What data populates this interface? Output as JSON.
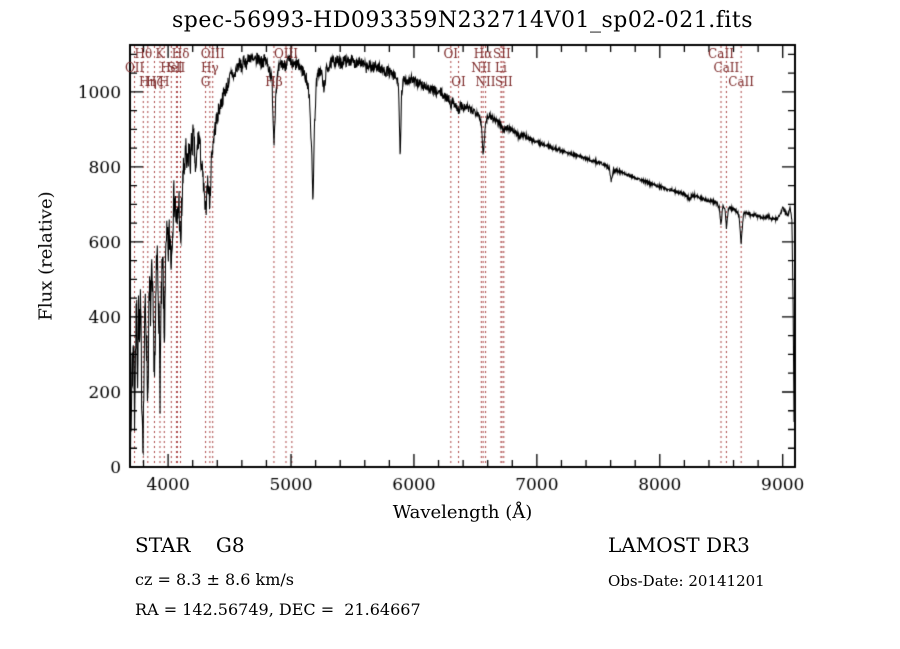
{
  "title": "spec-56993-HD093359N232714V01_sp02-021.fits",
  "footer": {
    "class_label": "STAR    G8",
    "survey": "LAMOST DR3",
    "cz": "cz = 8.3 ± 8.6 km/s",
    "obs_date": "Obs-Date: 20141201",
    "coords": "RA = 142.56749, DEC =  21.64667"
  },
  "chart_data": {
    "type": "line",
    "title": "spec-56993-HD093359N232714V01_sp02-021.fits",
    "xlabel": "Wavelength (Å)",
    "ylabel": "Flux (relative)",
    "xlim": [
      3690,
      9100
    ],
    "ylim": [
      0,
      1125
    ],
    "x_major_ticks": [
      4000,
      5000,
      6000,
      7000,
      8000,
      9000
    ],
    "x_minor_step": 200,
    "y_major_ticks": [
      0,
      200,
      400,
      600,
      800,
      1000
    ],
    "y_minor_step": 50,
    "grid": false,
    "legend": "none",
    "line_color": "#000000",
    "marker_line_color": "#aa4444",
    "marker_label_color": "#7d2b2b",
    "spectral_lines": [
      {
        "label": "OII",
        "wavelength": 3727,
        "row": 1
      },
      {
        "label": "Hθ",
        "wavelength": 3798,
        "row": 0
      },
      {
        "label": "Hη",
        "wavelength": 3835,
        "row": 2
      },
      {
        "label": "Hζ",
        "wavelength": 3889,
        "row": 2
      },
      {
        "label": "K",
        "wavelength": 3934,
        "row": 0
      },
      {
        "label": "H",
        "wavelength": 3969,
        "row": 2
      },
      {
        "label": "HeI",
        "wavelength": 4026,
        "row": 1
      },
      {
        "label": "SII",
        "wavelength": 4068,
        "row": 1
      },
      {
        "label": "",
        "wavelength": 4076,
        "row": 1
      },
      {
        "label": "Hδ",
        "wavelength": 4101,
        "row": 0
      },
      {
        "label": "G",
        "wavelength": 4305,
        "row": 2
      },
      {
        "label": "Hγ",
        "wavelength": 4340,
        "row": 1
      },
      {
        "label": "OIII",
        "wavelength": 4363,
        "row": 0
      },
      {
        "label": "Hβ",
        "wavelength": 4861,
        "row": 2
      },
      {
        "label": "OIII",
        "wavelength": 4959,
        "row": 0
      },
      {
        "label": "",
        "wavelength": 5007,
        "row": 0
      },
      {
        "label": "OI",
        "wavelength": 6300,
        "row": 0
      },
      {
        "label": "OI",
        "wavelength": 6363,
        "row": 2
      },
      {
        "label": "NII",
        "wavelength": 6548,
        "row": 1
      },
      {
        "label": "Hα",
        "wavelength": 6563,
        "row": 0
      },
      {
        "label": "NII",
        "wavelength": 6583,
        "row": 2
      },
      {
        "label": "Li",
        "wavelength": 6708,
        "row": 1
      },
      {
        "label": "SII",
        "wavelength": 6716,
        "row": 0
      },
      {
        "label": "SII",
        "wavelength": 6731,
        "row": 2
      },
      {
        "label": "CaII",
        "wavelength": 8498,
        "row": 0
      },
      {
        "label": "CaII",
        "wavelength": 8542,
        "row": 1
      },
      {
        "label": "CaII",
        "wavelength": 8662,
        "row": 2
      }
    ],
    "spectrum": {
      "anchors": [
        [
          3692,
          140
        ],
        [
          3700,
          60
        ],
        [
          3706,
          330
        ],
        [
          3712,
          210
        ],
        [
          3718,
          390
        ],
        [
          3727,
          140
        ],
        [
          3736,
          340
        ],
        [
          3744,
          400
        ],
        [
          3752,
          260
        ],
        [
          3760,
          430
        ],
        [
          3768,
          310
        ],
        [
          3776,
          430
        ],
        [
          3784,
          230
        ],
        [
          3792,
          120
        ],
        [
          3798,
          90
        ],
        [
          3806,
          300
        ],
        [
          3814,
          440
        ],
        [
          3822,
          370
        ],
        [
          3830,
          250
        ],
        [
          3835,
          170
        ],
        [
          3842,
          380
        ],
        [
          3850,
          470
        ],
        [
          3858,
          420
        ],
        [
          3866,
          500
        ],
        [
          3874,
          440
        ],
        [
          3882,
          350
        ],
        [
          3889,
          260
        ],
        [
          3896,
          300
        ],
        [
          3904,
          520
        ],
        [
          3912,
          560
        ],
        [
          3920,
          480
        ],
        [
          3927,
          380
        ],
        [
          3934,
          190
        ],
        [
          3942,
          400
        ],
        [
          3950,
          500
        ],
        [
          3958,
          540
        ],
        [
          3964,
          430
        ],
        [
          3969,
          310
        ],
        [
          3976,
          500
        ],
        [
          3984,
          570
        ],
        [
          3992,
          610
        ],
        [
          4000,
          570
        ],
        [
          4010,
          620
        ],
        [
          4020,
          600
        ],
        [
          4026,
          540
        ],
        [
          4034,
          640
        ],
        [
          4044,
          700
        ],
        [
          4054,
          730
        ],
        [
          4062,
          680
        ],
        [
          4072,
          630
        ],
        [
          4088,
          720
        ],
        [
          4095,
          650
        ],
        [
          4101,
          560
        ],
        [
          4110,
          680
        ],
        [
          4120,
          760
        ],
        [
          4132,
          800
        ],
        [
          4144,
          830
        ],
        [
          4156,
          790
        ],
        [
          4168,
          850
        ],
        [
          4180,
          810
        ],
        [
          4192,
          860
        ],
        [
          4204,
          880
        ],
        [
          4215,
          840
        ],
        [
          4226,
          770
        ],
        [
          4238,
          860
        ],
        [
          4250,
          880
        ],
        [
          4262,
          840
        ],
        [
          4274,
          800
        ],
        [
          4288,
          750
        ],
        [
          4305,
          670
        ],
        [
          4318,
          760
        ],
        [
          4330,
          740
        ],
        [
          4340,
          700
        ],
        [
          4352,
          820
        ],
        [
          4364,
          860
        ],
        [
          4376,
          890
        ],
        [
          4390,
          920
        ],
        [
          4405,
          940
        ],
        [
          4420,
          960
        ],
        [
          4440,
          980
        ],
        [
          4460,
          1000
        ],
        [
          4480,
          1015
        ],
        [
          4500,
          1035
        ],
        [
          4520,
          1050
        ],
        [
          4540,
          1040
        ],
        [
          4560,
          1065
        ],
        [
          4580,
          1075
        ],
        [
          4600,
          1065
        ],
        [
          4620,
          1085
        ],
        [
          4640,
          1075
        ],
        [
          4660,
          1095
        ],
        [
          4680,
          1085
        ],
        [
          4700,
          1080
        ],
        [
          4730,
          1090
        ],
        [
          4760,
          1080
        ],
        [
          4790,
          1085
        ],
        [
          4820,
          1065
        ],
        [
          4845,
          1030
        ],
        [
          4861,
          860
        ],
        [
          4878,
          1010
        ],
        [
          4900,
          1060
        ],
        [
          4925,
          1075
        ],
        [
          4950,
          1070
        ],
        [
          4975,
          1085
        ],
        [
          5000,
          1075
        ],
        [
          5025,
          1070
        ],
        [
          5050,
          1075
        ],
        [
          5075,
          1065
        ],
        [
          5100,
          1055
        ],
        [
          5125,
          1035
        ],
        [
          5150,
          990
        ],
        [
          5168,
          840
        ],
        [
          5178,
          700
        ],
        [
          5190,
          900
        ],
        [
          5205,
          1020
        ],
        [
          5225,
          1055
        ],
        [
          5250,
          1050
        ],
        [
          5268,
          1000
        ],
        [
          5285,
          1055
        ],
        [
          5310,
          1070
        ],
        [
          5340,
          1080
        ],
        [
          5370,
          1085
        ],
        [
          5400,
          1075
        ],
        [
          5430,
          1085
        ],
        [
          5460,
          1080
        ],
        [
          5490,
          1085
        ],
        [
          5520,
          1075
        ],
        [
          5550,
          1085
        ],
        [
          5580,
          1075
        ],
        [
          5610,
          1065
        ],
        [
          5640,
          1070
        ],
        [
          5670,
          1065
        ],
        [
          5700,
          1070
        ],
        [
          5730,
          1060
        ],
        [
          5760,
          1055
        ],
        [
          5790,
          1055
        ],
        [
          5820,
          1045
        ],
        [
          5850,
          1040
        ],
        [
          5875,
          1020
        ],
        [
          5888,
          810
        ],
        [
          5900,
          1000
        ],
        [
          5920,
          1035
        ],
        [
          5950,
          1030
        ],
        [
          5980,
          1035
        ],
        [
          6010,
          1025
        ],
        [
          6040,
          1025
        ],
        [
          6070,
          1015
        ],
        [
          6100,
          1015
        ],
        [
          6130,
          1005
        ],
        [
          6160,
          1005
        ],
        [
          6190,
          995
        ],
        [
          6220,
          1000
        ],
        [
          6250,
          985
        ],
        [
          6280,
          985
        ],
        [
          6300,
          965
        ],
        [
          6320,
          975
        ],
        [
          6340,
          965
        ],
        [
          6362,
          945
        ],
        [
          6380,
          965
        ],
        [
          6400,
          955
        ],
        [
          6430,
          960
        ],
        [
          6460,
          950
        ],
        [
          6490,
          950
        ],
        [
          6520,
          945
        ],
        [
          6545,
          925
        ],
        [
          6563,
          830
        ],
        [
          6585,
          925
        ],
        [
          6610,
          940
        ],
        [
          6640,
          930
        ],
        [
          6670,
          925
        ],
        [
          6700,
          915
        ],
        [
          6717,
          905
        ],
        [
          6731,
          900
        ],
        [
          6760,
          905
        ],
        [
          6800,
          900
        ],
        [
          6860,
          880
        ],
        [
          6880,
          885
        ],
        [
          6920,
          880
        ],
        [
          6960,
          872
        ],
        [
          7000,
          868
        ],
        [
          7050,
          860
        ],
        [
          7100,
          855
        ],
        [
          7150,
          848
        ],
        [
          7200,
          843
        ],
        [
          7250,
          838
        ],
        [
          7300,
          833
        ],
        [
          7350,
          828
        ],
        [
          7400,
          822
        ],
        [
          7450,
          817
        ],
        [
          7500,
          812
        ],
        [
          7550,
          805
        ],
        [
          7590,
          795
        ],
        [
          7605,
          762
        ],
        [
          7620,
          790
        ],
        [
          7660,
          790
        ],
        [
          7700,
          785
        ],
        [
          7750,
          778
        ],
        [
          7800,
          772
        ],
        [
          7850,
          765
        ],
        [
          7900,
          758
        ],
        [
          7950,
          752
        ],
        [
          8000,
          748
        ],
        [
          8050,
          742
        ],
        [
          8100,
          738
        ],
        [
          8150,
          733
        ],
        [
          8200,
          728
        ],
        [
          8240,
          715
        ],
        [
          8270,
          725
        ],
        [
          8320,
          720
        ],
        [
          8370,
          713
        ],
        [
          8420,
          708
        ],
        [
          8460,
          705
        ],
        [
          8485,
          690
        ],
        [
          8498,
          645
        ],
        [
          8512,
          695
        ],
        [
          8530,
          690
        ],
        [
          8542,
          635
        ],
        [
          8558,
          690
        ],
        [
          8590,
          688
        ],
        [
          8625,
          683
        ],
        [
          8645,
          670
        ],
        [
          8662,
          595
        ],
        [
          8680,
          675
        ],
        [
          8720,
          675
        ],
        [
          8760,
          672
        ],
        [
          8800,
          668
        ],
        [
          8840,
          665
        ],
        [
          8880,
          668
        ],
        [
          8920,
          660
        ],
        [
          8960,
          662
        ],
        [
          9000,
          690
        ],
        [
          9020,
          680
        ],
        [
          9040,
          668
        ],
        [
          9060,
          690
        ],
        [
          9075,
          660
        ],
        [
          9085,
          420
        ],
        [
          9092,
          120
        ]
      ],
      "noise_envelope": [
        [
          3690,
          75
        ],
        [
          4100,
          55
        ],
        [
          4300,
          30
        ],
        [
          4500,
          18
        ],
        [
          5200,
          16
        ],
        [
          5900,
          14
        ],
        [
          6400,
          12
        ],
        [
          6700,
          8
        ],
        [
          7000,
          5
        ],
        [
          8000,
          4
        ],
        [
          8800,
          5
        ],
        [
          9100,
          4
        ]
      ],
      "noise_seed": 7
    }
  }
}
